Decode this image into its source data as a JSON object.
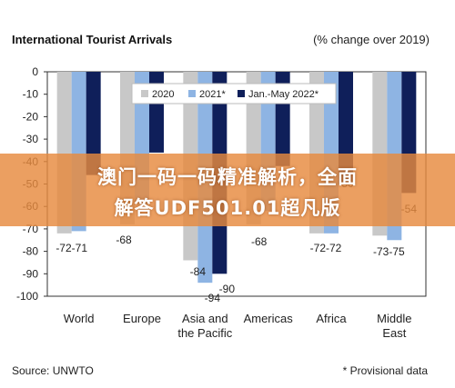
{
  "chart_data": {
    "type": "bar",
    "title": "International Tourist Arrivals",
    "subtitle": "(% change over 2019)",
    "categories": [
      "World",
      "Europe",
      "Asia and\nthe Pacific",
      "Americas",
      "Africa",
      "Middle\nEast"
    ],
    "series": [
      {
        "name": "2020",
        "color": "#c8c8c8",
        "values": [
          -72,
          -68,
          -84,
          -68,
          -72,
          -73
        ]
      },
      {
        "name": "2021*",
        "color": "#8eb4e3",
        "values": [
          -71,
          -59,
          -94,
          -62,
          -72,
          -75
        ]
      },
      {
        "name": "Jan.-May 2022*",
        "color": "#0f1f5a",
        "values": [
          -46,
          -36,
          -90,
          -42,
          -50,
          -54
        ]
      }
    ],
    "data_labels": [
      {
        "category_index": 0,
        "text": "-72-71"
      },
      {
        "category_index": 1,
        "text": "-68"
      },
      {
        "category_index": 2,
        "text": "-84"
      },
      {
        "category_index": 2,
        "text": "-94"
      },
      {
        "category_index": 2,
        "text": "-90"
      },
      {
        "category_index": 3,
        "text": "-68"
      },
      {
        "category_index": 4,
        "text": "-72-72"
      },
      {
        "category_index": 4,
        "text": "-50"
      },
      {
        "category_index": 5,
        "text": "-73-75"
      },
      {
        "category_index": 5,
        "text": "-54"
      }
    ],
    "ylim": [
      -100,
      0
    ],
    "yticks": [
      0,
      -10,
      -20,
      -30,
      -40,
      -50,
      -60,
      -70,
      -80,
      -90,
      -100
    ],
    "grid": false,
    "legend_position": "top-right"
  },
  "footer": {
    "source": "Source: UNWTO",
    "note": "* Provisional data"
  },
  "overlay": {
    "line1": "澳门一码一码精准解析，全面",
    "line2": "解答UDF501.01超凡版"
  }
}
